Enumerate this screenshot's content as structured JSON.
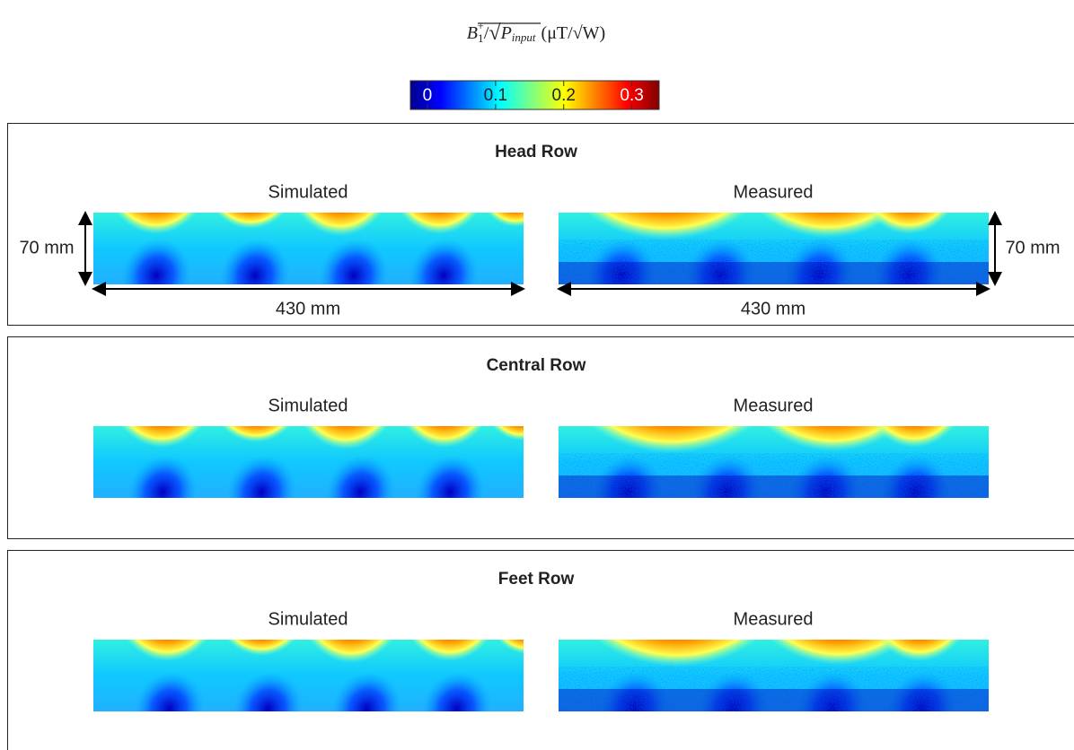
{
  "colorbar": {
    "title": {
      "symbol": "B",
      "sub": "1",
      "sup": "+",
      "slash": "/",
      "radicand": "P",
      "radicand_sub": "input",
      "unit": "(μT/√W)"
    },
    "lim": [
      -0.025,
      0.34
    ],
    "ticks": [
      0,
      0.1,
      0.2,
      0.3
    ]
  },
  "rows": [
    {
      "title": "Head Row",
      "left": "Simulated",
      "right": "Measured",
      "dims": {
        "left_height": "70 mm",
        "left_width": "430 mm",
        "right_height": "70 mm",
        "right_width": "430 mm"
      }
    },
    {
      "title": "Central Row",
      "left": "Simulated",
      "right": "Measured"
    },
    {
      "title": "Feet Row",
      "left": "Simulated",
      "right": "Measured"
    }
  ]
}
